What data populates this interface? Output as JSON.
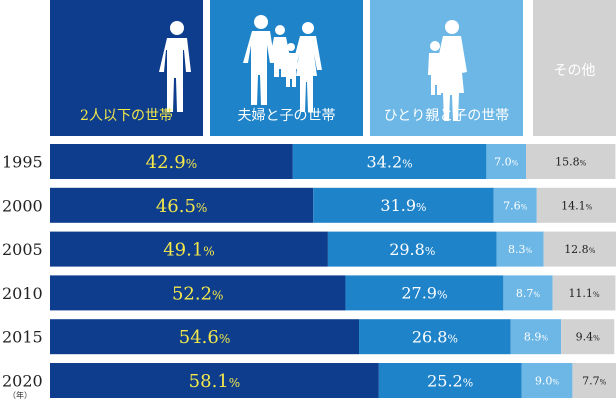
{
  "header": {
    "categories": [
      {
        "label": "2人以下の世帯"
      },
      {
        "label": "夫婦と子の世帯"
      },
      {
        "label": "ひとり親と子の世帯"
      },
      {
        "label": "その他"
      }
    ]
  },
  "year_unit": "（年）",
  "colors": {
    "two_or_less": "#0d3d8c",
    "couple_child": "#1f83c9",
    "single_parent": "#6cb7e6",
    "other": "#d2d2d2",
    "highlight_text": "#f4e84a"
  },
  "chart_data": {
    "type": "bar",
    "orientation": "horizontal",
    "stacked": true,
    "normalized": true,
    "categories": [
      "1995",
      "2000",
      "2005",
      "2010",
      "2015",
      "2020"
    ],
    "series": [
      {
        "name": "2人以下の世帯",
        "values": [
          42.9,
          46.5,
          49.1,
          52.2,
          54.6,
          58.1
        ]
      },
      {
        "name": "夫婦と子の世帯",
        "values": [
          34.2,
          31.9,
          29.8,
          27.9,
          26.8,
          25.2
        ]
      },
      {
        "name": "ひとり親と子の世帯",
        "values": [
          7.0,
          7.6,
          8.3,
          8.7,
          8.9,
          9.0
        ]
      },
      {
        "name": "その他",
        "values": [
          15.8,
          14.1,
          12.8,
          11.1,
          9.4,
          7.7
        ]
      }
    ],
    "labels": [
      [
        "42.9",
        "34.2",
        "7.0",
        "15.8"
      ],
      [
        "46.5",
        "31.9",
        "7.6",
        "14.1"
      ],
      [
        "49.1",
        "29.8",
        "8.3",
        "12.8"
      ],
      [
        "52.2",
        "27.9",
        "8.7",
        "11.1"
      ],
      [
        "54.6",
        "26.8",
        "8.9",
        "9.4"
      ],
      [
        "58.1",
        "25.2",
        "9.0",
        "7.7"
      ]
    ],
    "unit": "%",
    "xlim": [
      0,
      100
    ]
  }
}
